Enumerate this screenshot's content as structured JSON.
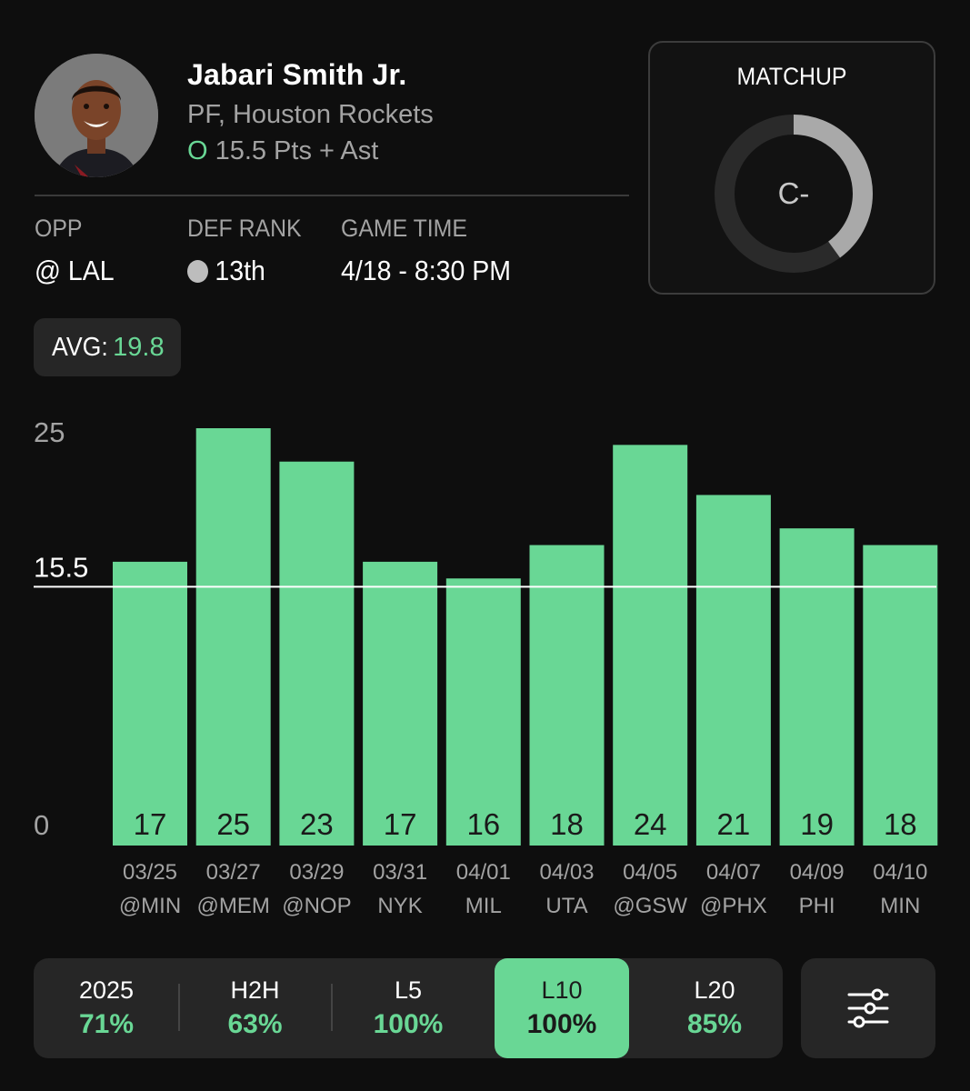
{
  "player": {
    "name": "Jabari Smith Jr.",
    "position_team": "PF, Houston Rockets",
    "prop_side": "O",
    "prop_line": "15.5 Pts + Ast"
  },
  "info": {
    "opp_label": "OPP",
    "opp_value": "@ LAL",
    "def_rank_label": "DEF RANK",
    "def_rank_value": "13th",
    "game_time_label": "GAME TIME",
    "game_time_value": "4/18 - 8:30 PM"
  },
  "matchup": {
    "title": "MATCHUP",
    "grade": "C-",
    "ring_fill_fraction": 0.4
  },
  "average": {
    "label": "AVG:",
    "value": "19.8"
  },
  "chart_data": {
    "type": "bar",
    "categories": [
      "03/25 @MIN",
      "03/27 @MEM",
      "03/29 @NOP",
      "03/31 NYK",
      "04/01 MIL",
      "04/03 UTA",
      "04/05 @GSW",
      "04/07 @PHX",
      "04/09 PHI",
      "04/10 MIN"
    ],
    "dates": [
      "03/25",
      "03/27",
      "03/29",
      "03/31",
      "04/01",
      "04/03",
      "04/05",
      "04/07",
      "04/09",
      "04/10"
    ],
    "opponents": [
      "@MIN",
      "@MEM",
      "@NOP",
      "NYK",
      "MIL",
      "UTA",
      "@GSW",
      "@PHX",
      "PHI",
      "MIN"
    ],
    "values": [
      17,
      25,
      23,
      17,
      16,
      18,
      24,
      21,
      19,
      18
    ],
    "line": 15.5,
    "line_label": "15.5",
    "yticks": [
      "25",
      "0"
    ],
    "ylim": [
      0,
      25
    ],
    "bar_color": "#69d795",
    "line_color": "#ffffff"
  },
  "filters": {
    "tabs": [
      {
        "label": "2025",
        "pct": "71%",
        "active": false
      },
      {
        "label": "H2H",
        "pct": "63%",
        "active": false
      },
      {
        "label": "L5",
        "pct": "100%",
        "active": false
      },
      {
        "label": "L10",
        "pct": "100%",
        "active": true
      },
      {
        "label": "L20",
        "pct": "85%",
        "active": false
      }
    ],
    "settings_icon": "sliders-icon"
  },
  "colors": {
    "accent": "#69d795",
    "background": "#0e0e0e",
    "panel": "#262626"
  }
}
